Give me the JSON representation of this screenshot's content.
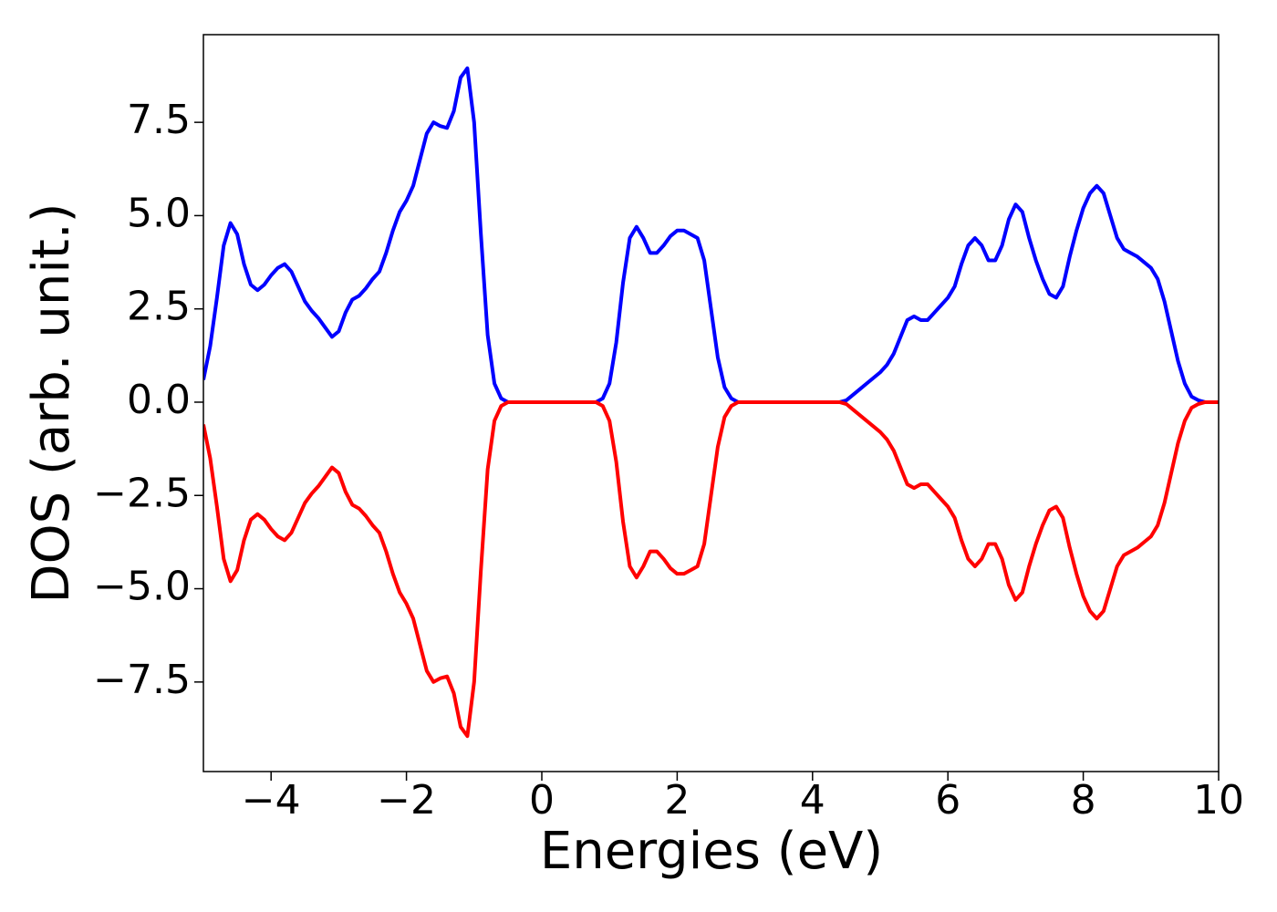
{
  "chart_data": {
    "type": "line",
    "xlabel": "Energies (eV)",
    "ylabel": "DOS (arb. unit.)",
    "xlim": [
      -5,
      10
    ],
    "ylim": [
      -9.9,
      9.85
    ],
    "xticks": [
      {
        "value": -4,
        "label": "−4"
      },
      {
        "value": -2,
        "label": "−2"
      },
      0,
      2,
      4,
      6,
      8,
      10
    ],
    "yticks": [
      {
        "value": -7.5,
        "label": "−7.5"
      },
      {
        "value": -5,
        "label": "−5.0"
      },
      {
        "value": -2.5,
        "label": "−2.5"
      },
      {
        "value": 0,
        "label": "0.0"
      },
      2.5,
      {
        "value": 5,
        "label": "5.0"
      },
      7.5
    ],
    "x": [
      -5.0,
      -4.9,
      -4.8,
      -4.7,
      -4.6,
      -4.5,
      -4.4,
      -4.3,
      -4.2,
      -4.1,
      -4.0,
      -3.9,
      -3.8,
      -3.7,
      -3.6,
      -3.5,
      -3.4,
      -3.3,
      -3.2,
      -3.1,
      -3.0,
      -2.9,
      -2.8,
      -2.7,
      -2.6,
      -2.5,
      -2.4,
      -2.3,
      -2.2,
      -2.1,
      -2.0,
      -1.9,
      -1.8,
      -1.7,
      -1.6,
      -1.5,
      -1.4,
      -1.3,
      -1.2,
      -1.1,
      -1.0,
      -0.9,
      -0.8,
      -0.7,
      -0.6,
      -0.5,
      -0.4,
      -0.3,
      -0.2,
      -0.1,
      0.0,
      0.1,
      0.2,
      0.3,
      0.4,
      0.5,
      0.6,
      0.7,
      0.8,
      0.9,
      1.0,
      1.1,
      1.2,
      1.3,
      1.4,
      1.5,
      1.6,
      1.7,
      1.8,
      1.9,
      2.0,
      2.1,
      2.2,
      2.3,
      2.4,
      2.5,
      2.6,
      2.7,
      2.8,
      2.9,
      3.0,
      3.1,
      3.2,
      3.3,
      3.4,
      3.5,
      3.6,
      3.7,
      3.8,
      3.9,
      4.0,
      4.1,
      4.2,
      4.3,
      4.4,
      4.5,
      4.6,
      4.7,
      4.8,
      4.9,
      5.0,
      5.1,
      5.2,
      5.3,
      5.4,
      5.5,
      5.6,
      5.7,
      5.8,
      5.9,
      6.0,
      6.1,
      6.2,
      6.3,
      6.4,
      6.5,
      6.6,
      6.7,
      6.8,
      6.9,
      7.0,
      7.1,
      7.2,
      7.3,
      7.4,
      7.5,
      7.6,
      7.7,
      7.8,
      7.9,
      8.0,
      8.1,
      8.2,
      8.3,
      8.4,
      8.5,
      8.6,
      8.7,
      8.8,
      8.9,
      9.0,
      9.1,
      9.2,
      9.3,
      9.4,
      9.5,
      9.6,
      9.7,
      9.8,
      9.9,
      10.0
    ],
    "series": [
      {
        "color": "#0000ff",
        "values": [
          0.6,
          1.5,
          2.8,
          4.2,
          4.8,
          4.5,
          3.7,
          3.15,
          3.0,
          3.15,
          3.4,
          3.6,
          3.7,
          3.5,
          3.1,
          2.7,
          2.45,
          2.25,
          2.0,
          1.75,
          1.9,
          2.4,
          2.75,
          2.85,
          3.05,
          3.3,
          3.5,
          4.0,
          4.6,
          5.1,
          5.4,
          5.8,
          6.5,
          7.2,
          7.5,
          7.4,
          7.35,
          7.8,
          8.7,
          8.95,
          7.5,
          4.5,
          1.8,
          0.5,
          0.1,
          0,
          0,
          0,
          0,
          0,
          0,
          0,
          0,
          0,
          0,
          0,
          0,
          0,
          0,
          0.1,
          0.5,
          1.6,
          3.2,
          4.4,
          4.7,
          4.4,
          4.0,
          4.0,
          4.2,
          4.45,
          4.6,
          4.6,
          4.5,
          4.4,
          3.8,
          2.5,
          1.2,
          0.4,
          0.1,
          0,
          0,
          0,
          0,
          0,
          0,
          0,
          0,
          0,
          0,
          0,
          0,
          0,
          0,
          0,
          0,
          0.05,
          0.2,
          0.35,
          0.5,
          0.65,
          0.8,
          1.0,
          1.3,
          1.75,
          2.2,
          2.3,
          2.2,
          2.2,
          2.4,
          2.6,
          2.8,
          3.1,
          3.7,
          4.2,
          4.4,
          4.2,
          3.8,
          3.8,
          4.2,
          4.9,
          5.3,
          5.1,
          4.4,
          3.8,
          3.3,
          2.9,
          2.8,
          3.1,
          3.9,
          4.6,
          5.2,
          5.6,
          5.8,
          5.6,
          5.0,
          4.4,
          4.1,
          4.0,
          3.9,
          3.75,
          3.6,
          3.3,
          2.7,
          1.9,
          1.1,
          0.5,
          0.15,
          0.05,
          0,
          0,
          0
        ]
      },
      {
        "color": "#ff0000",
        "values": [
          -0.6,
          -1.5,
          -2.8,
          -4.2,
          -4.8,
          -4.5,
          -3.7,
          -3.15,
          -3.0,
          -3.15,
          -3.4,
          -3.6,
          -3.7,
          -3.5,
          -3.1,
          -2.7,
          -2.45,
          -2.25,
          -2.0,
          -1.75,
          -1.9,
          -2.4,
          -2.75,
          -2.85,
          -3.05,
          -3.3,
          -3.5,
          -4.0,
          -4.6,
          -5.1,
          -5.4,
          -5.8,
          -6.5,
          -7.2,
          -7.5,
          -7.4,
          -7.35,
          -7.8,
          -8.7,
          -8.95,
          -7.5,
          -4.5,
          -1.8,
          -0.5,
          -0.1,
          0,
          0,
          0,
          0,
          0,
          0,
          0,
          0,
          0,
          0,
          0,
          0,
          0,
          0,
          -0.1,
          -0.5,
          -1.6,
          -3.2,
          -4.4,
          -4.7,
          -4.4,
          -4.0,
          -4.0,
          -4.2,
          -4.45,
          -4.6,
          -4.6,
          -4.5,
          -4.4,
          -3.8,
          -2.5,
          -1.2,
          -0.4,
          -0.1,
          0,
          0,
          0,
          0,
          0,
          0,
          0,
          0,
          0,
          0,
          0,
          0,
          0,
          0,
          0,
          0,
          -0.05,
          -0.2,
          -0.35,
          -0.5,
          -0.65,
          -0.8,
          -1.0,
          -1.3,
          -1.75,
          -2.2,
          -2.3,
          -2.2,
          -2.2,
          -2.4,
          -2.6,
          -2.8,
          -3.1,
          -3.7,
          -4.2,
          -4.4,
          -4.2,
          -3.8,
          -3.8,
          -4.2,
          -4.9,
          -5.3,
          -5.1,
          -4.4,
          -3.8,
          -3.3,
          -2.9,
          -2.8,
          -3.1,
          -3.9,
          -4.6,
          -5.2,
          -5.6,
          -5.8,
          -5.6,
          -5.0,
          -4.4,
          -4.1,
          -4.0,
          -3.9,
          -3.75,
          -3.6,
          -3.3,
          -2.7,
          -1.9,
          -1.1,
          -0.5,
          -0.15,
          -0.05,
          0,
          0,
          0
        ]
      }
    ]
  }
}
